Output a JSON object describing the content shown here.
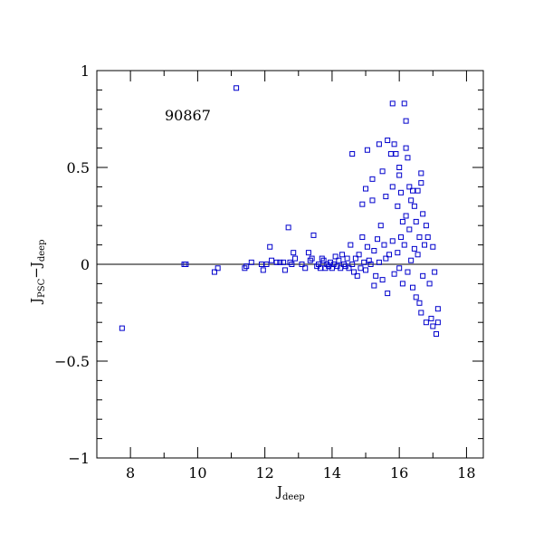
{
  "chart_data": {
    "type": "scatter",
    "title": "",
    "annotation": "90867",
    "xlabel": {
      "main": "J",
      "sub": "deep"
    },
    "ylabel": {
      "main1": "J",
      "sub1": "PSC",
      "sep": "−",
      "main2": "J",
      "sub2": "deep"
    },
    "xlim": [
      7,
      18.5
    ],
    "ylim": [
      -1,
      1
    ],
    "x_ticks": [
      8,
      10,
      12,
      14,
      16,
      18
    ],
    "x_tick_labels": [
      "8",
      "10",
      "12",
      "14",
      "16",
      "18"
    ],
    "y_ticks": [
      -1,
      -0.5,
      0,
      0.5,
      1
    ],
    "y_tick_labels": [
      "−1",
      "−0.5",
      "0",
      "0.5",
      "1"
    ],
    "reference_line_y": 0,
    "grid": false,
    "legend": "none",
    "marker": "open-square",
    "point_color": "#0000cc",
    "points": [
      [
        7.75,
        -0.33
      ],
      [
        9.6,
        0.0
      ],
      [
        9.65,
        0.0
      ],
      [
        10.5,
        -0.04
      ],
      [
        10.6,
        -0.02
      ],
      [
        11.15,
        0.91
      ],
      [
        11.4,
        -0.02
      ],
      [
        11.45,
        -0.01
      ],
      [
        11.6,
        0.01
      ],
      [
        11.9,
        0.0
      ],
      [
        11.95,
        -0.03
      ],
      [
        12.05,
        0.0
      ],
      [
        12.15,
        0.09
      ],
      [
        12.2,
        0.02
      ],
      [
        12.35,
        0.01
      ],
      [
        12.45,
        0.01
      ],
      [
        12.55,
        0.01
      ],
      [
        12.6,
        -0.03
      ],
      [
        12.7,
        0.19
      ],
      [
        12.75,
        0.01
      ],
      [
        12.8,
        0.0
      ],
      [
        12.85,
        0.06
      ],
      [
        12.9,
        0.03
      ],
      [
        13.1,
        0.0
      ],
      [
        13.2,
        -0.02
      ],
      [
        13.3,
        0.06
      ],
      [
        13.35,
        0.02
      ],
      [
        13.4,
        0.03
      ],
      [
        13.45,
        0.15
      ],
      [
        13.55,
        -0.01
      ],
      [
        13.6,
        0.0
      ],
      [
        13.65,
        -0.02
      ],
      [
        13.7,
        0.03
      ],
      [
        13.75,
        0.02
      ],
      [
        13.8,
        -0.02
      ],
      [
        13.85,
        0.0
      ],
      [
        13.9,
        -0.01
      ],
      [
        13.95,
        0.01
      ],
      [
        14.0,
        -0.02
      ],
      [
        14.05,
        0.0
      ],
      [
        14.1,
        0.04
      ],
      [
        14.15,
        -0.01
      ],
      [
        14.2,
        0.02
      ],
      [
        14.25,
        -0.02
      ],
      [
        14.3,
        0.05
      ],
      [
        14.35,
        0.0
      ],
      [
        14.4,
        -0.01
      ],
      [
        14.45,
        0.03
      ],
      [
        14.5,
        -0.02
      ],
      [
        14.55,
        0.1
      ],
      [
        14.6,
        0.57
      ],
      [
        14.6,
        0.0
      ],
      [
        14.65,
        -0.04
      ],
      [
        14.7,
        0.03
      ],
      [
        14.75,
        -0.06
      ],
      [
        14.8,
        0.05
      ],
      [
        14.85,
        -0.02
      ],
      [
        14.9,
        0.14
      ],
      [
        14.9,
        0.31
      ],
      [
        14.95,
        0.01
      ],
      [
        15.0,
        0.39
      ],
      [
        15.0,
        -0.03
      ],
      [
        15.05,
        0.59
      ],
      [
        15.05,
        0.09
      ],
      [
        15.1,
        0.02
      ],
      [
        15.15,
        0.0
      ],
      [
        15.2,
        0.44
      ],
      [
        15.2,
        0.33
      ],
      [
        15.25,
        -0.11
      ],
      [
        15.25,
        0.07
      ],
      [
        15.3,
        -0.06
      ],
      [
        15.35,
        0.13
      ],
      [
        15.4,
        0.62
      ],
      [
        15.4,
        0.01
      ],
      [
        15.45,
        0.2
      ],
      [
        15.5,
        0.48
      ],
      [
        15.5,
        -0.08
      ],
      [
        15.55,
        0.1
      ],
      [
        15.6,
        0.35
      ],
      [
        15.6,
        0.03
      ],
      [
        15.65,
        0.64
      ],
      [
        15.65,
        -0.15
      ],
      [
        15.7,
        0.05
      ],
      [
        15.75,
        0.57
      ],
      [
        15.8,
        0.83
      ],
      [
        15.8,
        0.4
      ],
      [
        15.8,
        0.12
      ],
      [
        15.85,
        0.62
      ],
      [
        15.85,
        -0.05
      ],
      [
        15.9,
        0.57
      ],
      [
        15.95,
        0.3
      ],
      [
        15.95,
        0.06
      ],
      [
        16.0,
        0.5
      ],
      [
        16.0,
        0.46
      ],
      [
        16.0,
        -0.02
      ],
      [
        16.05,
        0.37
      ],
      [
        16.05,
        0.14
      ],
      [
        16.1,
        0.22
      ],
      [
        16.1,
        -0.1
      ],
      [
        16.15,
        0.83
      ],
      [
        16.15,
        0.1
      ],
      [
        16.2,
        0.74
      ],
      [
        16.2,
        0.6
      ],
      [
        16.2,
        0.25
      ],
      [
        16.25,
        0.55
      ],
      [
        16.25,
        -0.04
      ],
      [
        16.3,
        0.4
      ],
      [
        16.3,
        0.18
      ],
      [
        16.35,
        0.33
      ],
      [
        16.35,
        0.02
      ],
      [
        16.4,
        0.38
      ],
      [
        16.4,
        -0.12
      ],
      [
        16.45,
        0.3
      ],
      [
        16.45,
        0.08
      ],
      [
        16.5,
        0.22
      ],
      [
        16.5,
        -0.17
      ],
      [
        16.55,
        0.38
      ],
      [
        16.55,
        0.05
      ],
      [
        16.6,
        0.14
      ],
      [
        16.6,
        -0.2
      ],
      [
        16.65,
        0.47
      ],
      [
        16.65,
        0.42
      ],
      [
        16.65,
        -0.25
      ],
      [
        16.7,
        0.26
      ],
      [
        16.7,
        -0.06
      ],
      [
        16.75,
        0.1
      ],
      [
        16.8,
        0.2
      ],
      [
        16.8,
        -0.3
      ],
      [
        16.85,
        0.14
      ],
      [
        16.9,
        -0.1
      ],
      [
        16.95,
        -0.28
      ],
      [
        17.0,
        0.09
      ],
      [
        17.0,
        -0.32
      ],
      [
        17.05,
        -0.04
      ],
      [
        17.1,
        -0.36
      ],
      [
        17.15,
        -0.3
      ],
      [
        17.15,
        -0.23
      ]
    ]
  }
}
